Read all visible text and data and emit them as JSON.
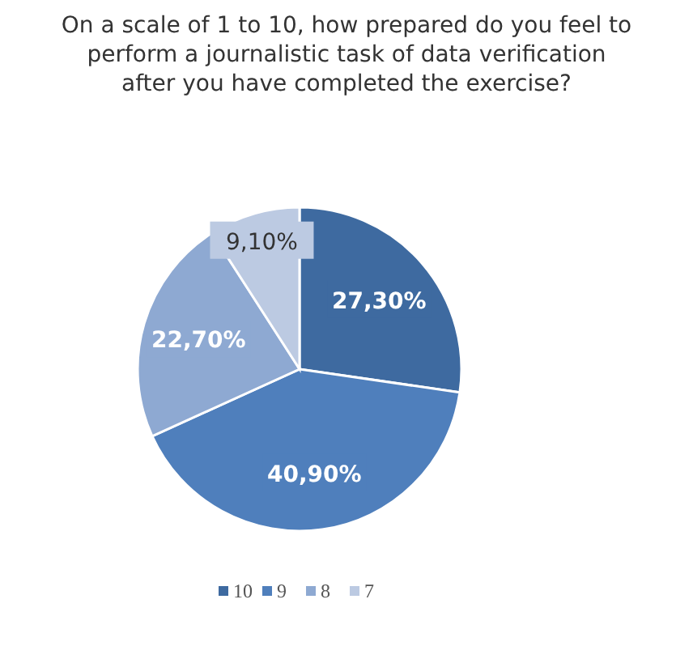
{
  "chart_data": {
    "type": "pie",
    "title": "On a scale of 1 to 10, how prepared do you feel to perform a journalistic task of data verification after you have completed the exercise?",
    "categories": [
      "10",
      "9",
      "8",
      "7"
    ],
    "values": [
      27.3,
      40.9,
      22.7,
      9.1
    ],
    "value_labels": [
      "27,30%",
      "40,90%",
      "22,70%",
      "9,10%"
    ],
    "colors": [
      "#3e6aa0",
      "#4f7fbc",
      "#8ea9d2",
      "#bccae2"
    ],
    "legend": "bottom"
  }
}
